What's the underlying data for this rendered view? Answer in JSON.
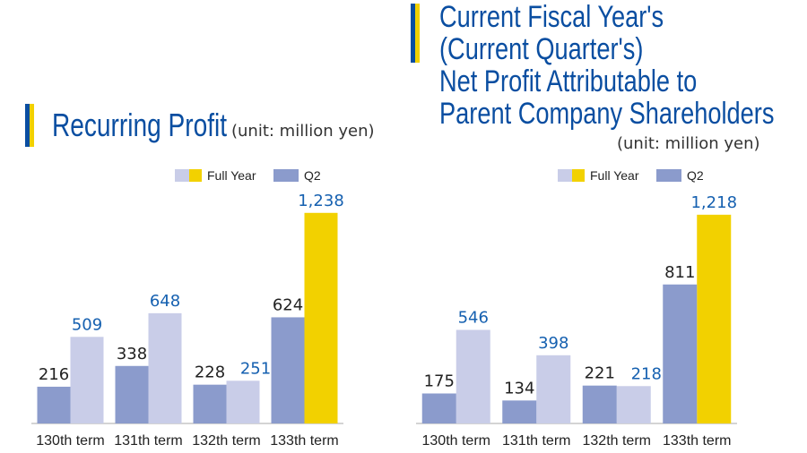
{
  "colors": {
    "q2": "#8b9bcc",
    "full_year": "#c9cde8",
    "full_year_current": "#f2d100",
    "axis": "#aaaaaa",
    "title": "#0a4ea1",
    "fy_label": "#1560b0",
    "marker_blue": "#0a4ea1",
    "marker_yellow": "#f2d100"
  },
  "chart_data": [
    {
      "type": "bar",
      "title": "Recurring Profit",
      "unit": "(unit: million yen)",
      "categories": [
        "130th term",
        "131th term",
        "132th term",
        "133th term"
      ],
      "legend": [
        "Full Year",
        "Q2"
      ],
      "series": [
        {
          "name": "Full Year",
          "values": [
            509,
            648,
            251,
            1238
          ],
          "labels": [
            "509",
            "648",
            "251",
            "1,238"
          ]
        },
        {
          "name": "Q2",
          "values": [
            216,
            338,
            228,
            624
          ],
          "labels": [
            "216",
            "338",
            "228",
            "624"
          ]
        }
      ],
      "ylim": [
        0,
        1400
      ],
      "grid": false,
      "legend_position": "top"
    },
    {
      "type": "bar",
      "title_lines": [
        "Current Fiscal Year's",
        "(Current Quarter's)",
        "Net Profit Attributable to",
        "Parent Company Shareholders"
      ],
      "unit": "(unit: million yen)",
      "categories": [
        "130th term",
        "131th term",
        "132th term",
        "133th term"
      ],
      "legend": [
        "Full Year",
        "Q2"
      ],
      "series": [
        {
          "name": "Full Year",
          "values": [
            546,
            398,
            218,
            1218
          ],
          "labels": [
            "546",
            "398",
            "218",
            "1,218"
          ]
        },
        {
          "name": "Q2",
          "values": [
            175,
            134,
            221,
            811
          ],
          "labels": [
            "175",
            "134",
            "221",
            "811"
          ]
        }
      ],
      "ylim": [
        0,
        1400
      ],
      "grid": false,
      "legend_position": "top"
    }
  ]
}
